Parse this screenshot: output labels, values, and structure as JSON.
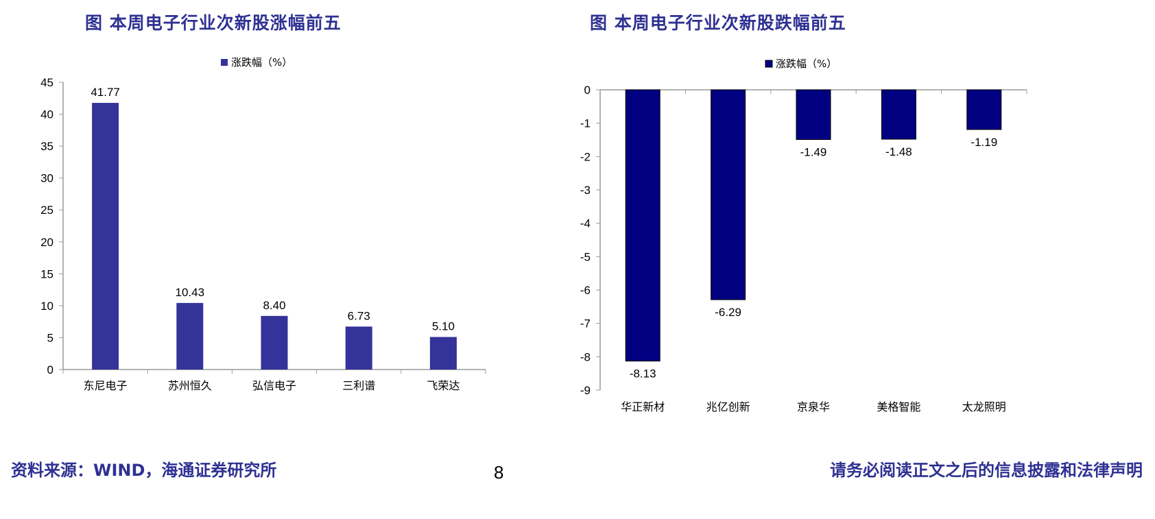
{
  "chart_data": [
    {
      "type": "bar",
      "title": "图 本周电子行业次新股涨幅前五",
      "legend": "涨跌幅（%）",
      "legend_position": "top",
      "categories": [
        "东尼电子",
        "苏州恒久",
        "弘信电子",
        "三利谱",
        "飞荣达"
      ],
      "values": [
        41.77,
        10.43,
        8.4,
        6.73,
        5.1
      ],
      "labels": [
        "41.77",
        "10.43",
        "8.40",
        "6.73",
        "5.10"
      ],
      "ylim": [
        0,
        45
      ],
      "yticks": [
        0,
        5,
        10,
        15,
        20,
        25,
        30,
        35,
        40,
        45
      ],
      "grid": false,
      "color": "#333399"
    },
    {
      "type": "bar",
      "title": "图 本周电子行业次新股跌幅前五",
      "legend": "涨跌幅（%）",
      "legend_position": "top",
      "categories": [
        "华正新材",
        "兆亿创新",
        "京泉华",
        "美格智能",
        "太龙照明"
      ],
      "values": [
        -8.13,
        -6.29,
        -1.49,
        -1.48,
        -1.19
      ],
      "labels": [
        "-8.13",
        "-6.29",
        "-1.49",
        "-1.48",
        "-1.19"
      ],
      "ylim": [
        -9,
        0
      ],
      "yticks": [
        0,
        -1,
        -2,
        -3,
        -4,
        -5,
        -6,
        -7,
        -8,
        -9
      ],
      "grid": false,
      "color": "#000080"
    }
  ],
  "footer": {
    "source": "资料来源：WIND，海通证券研究所",
    "page": "8",
    "disclaimer": "请务必阅读正文之后的信息披露和法律声明"
  }
}
